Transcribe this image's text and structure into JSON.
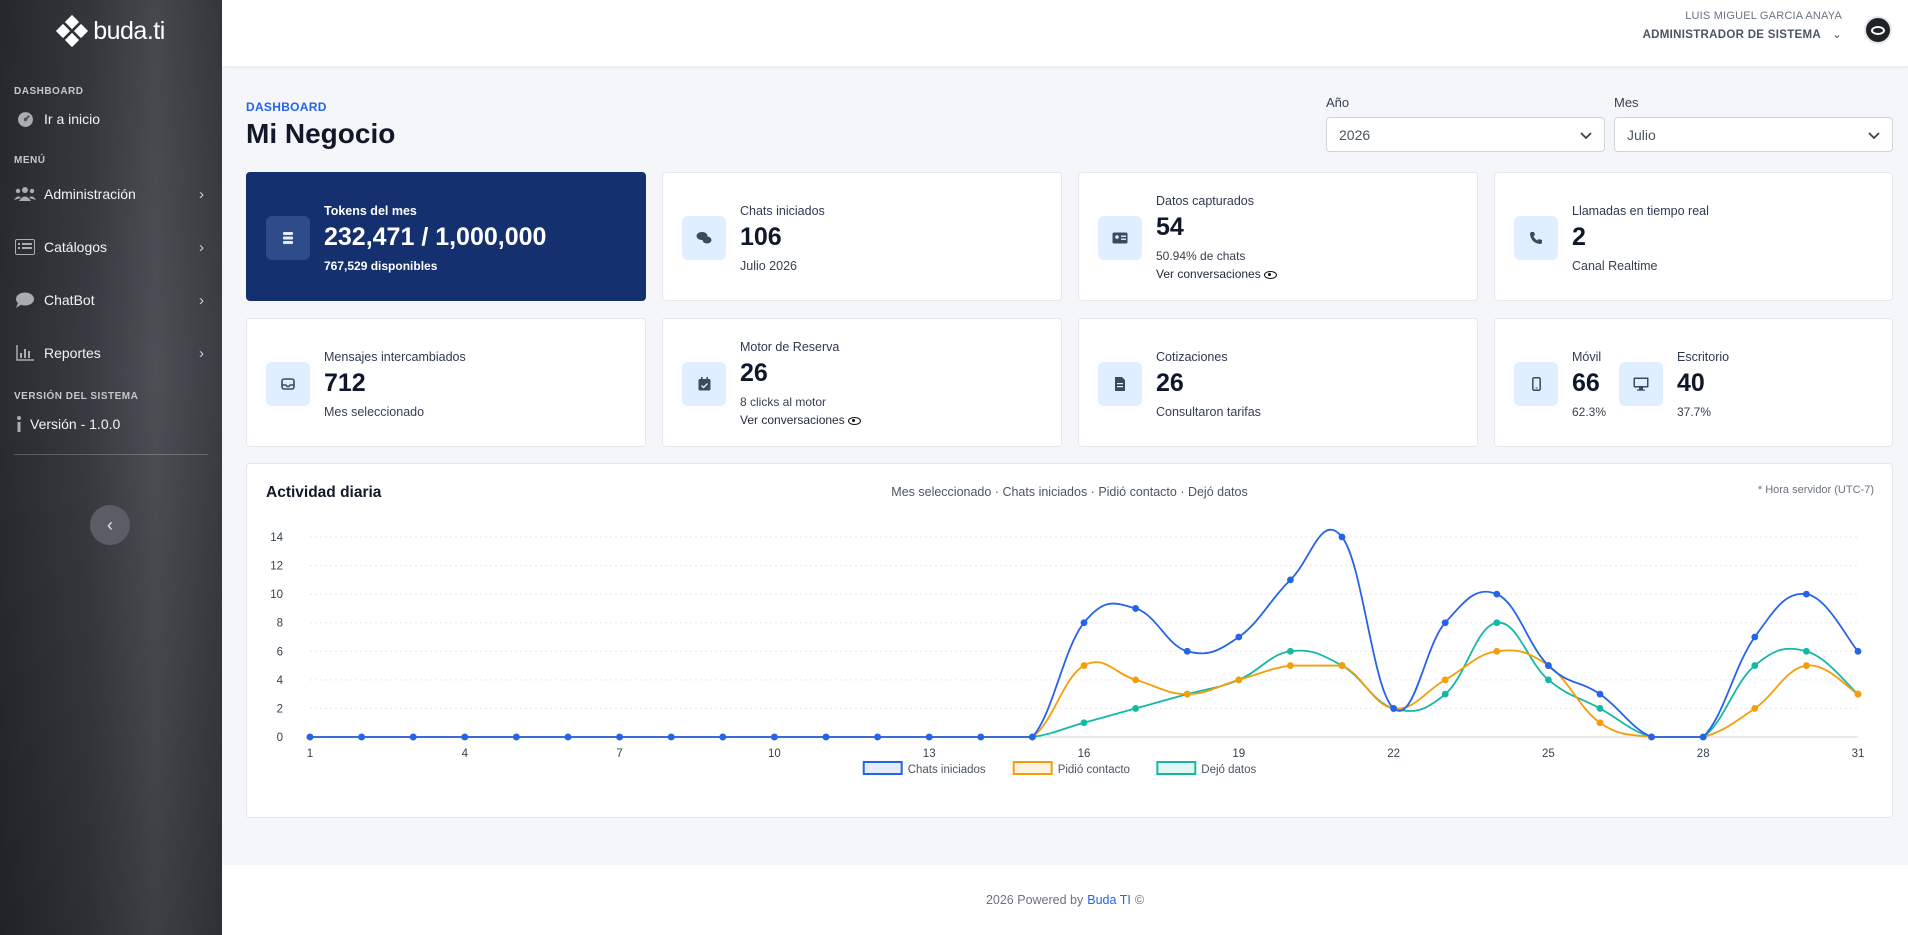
{
  "sidebar": {
    "logo_text": "buda.ti",
    "sections": {
      "dashboard": "DASHBOARD",
      "menu": "MENÚ",
      "version_section": "VERSIÓN DEL SISTEMA"
    },
    "home": {
      "label": "Ir a inicio",
      "icon": "dashboard-gauge-icon"
    },
    "items": [
      {
        "label": "Administración",
        "icon": "users-icon"
      },
      {
        "label": "Catálogos",
        "icon": "list-icon"
      },
      {
        "label": "ChatBot",
        "icon": "chat-bubble-icon"
      },
      {
        "label": "Reportes",
        "icon": "bar-chart-icon"
      }
    ],
    "version": {
      "label": "Versión - 1.0.0",
      "icon": "info-icon"
    }
  },
  "header": {
    "user_name": "LUIS MIGUEL GARCIA ANAYA",
    "user_role": "ADMINISTRADOR DE SISTEMA"
  },
  "page": {
    "breadcrumb": "DASHBOARD",
    "title": "Mi Negocio"
  },
  "filters": {
    "year_label": "Año",
    "year_value": "2026",
    "month_label": "Mes",
    "month_value": "Julio"
  },
  "cards": {
    "tokens": {
      "title": "Tokens del mes",
      "value": "232,471 / 1,000,000",
      "sub": "767,529 disponibles"
    },
    "chats": {
      "title": "Chats iniciados",
      "value": "106",
      "sub": "Julio 2026"
    },
    "datos": {
      "title": "Datos capturados",
      "value": "54",
      "sub": "50.94% de chats",
      "link": "Ver conversaciones"
    },
    "llamadas": {
      "title": "Llamadas en tiempo real",
      "value": "2",
      "sub": "Canal Realtime"
    },
    "mensajes": {
      "title": "Mensajes intercambiados",
      "value": "712",
      "sub": "Mes seleccionado"
    },
    "motor": {
      "title": "Motor de Reserva",
      "value": "26",
      "sub": "8 clicks al motor",
      "link": "Ver conversaciones"
    },
    "cotizaciones": {
      "title": "Cotizaciones",
      "value": "26",
      "sub": "Consultaron tarifas"
    },
    "movil": {
      "title": "Móvil",
      "value": "66",
      "sub": "62.3%"
    },
    "escritorio": {
      "title": "Escritorio",
      "value": "40",
      "sub": "37.7%"
    }
  },
  "chart_card": {
    "title": "Actividad diaria",
    "subtitle": "Mes seleccionado · Chats iniciados · Pidió contacto · Dejó datos",
    "note": "* Hora servidor (UTC-7)"
  },
  "chart_data": {
    "type": "line",
    "x": [
      1,
      2,
      3,
      4,
      5,
      6,
      7,
      8,
      9,
      10,
      11,
      12,
      13,
      14,
      15,
      16,
      17,
      18,
      19,
      20,
      21,
      22,
      23,
      24,
      25,
      26,
      27,
      28,
      29,
      30,
      31
    ],
    "x_tick_labels": [
      "1",
      "4",
      "7",
      "10",
      "13",
      "16",
      "19",
      "22",
      "25",
      "28",
      "31"
    ],
    "ylim": [
      0,
      14
    ],
    "y_ticks": [
      0,
      2,
      4,
      6,
      8,
      10,
      12,
      14
    ],
    "grid": true,
    "legend_position": "bottom",
    "series": [
      {
        "name": "Chats iniciados",
        "color": "#2563eb",
        "values": [
          0,
          0,
          0,
          0,
          0,
          0,
          0,
          0,
          0,
          0,
          0,
          0,
          0,
          0,
          0,
          8,
          9,
          6,
          7,
          11,
          14,
          2,
          8,
          10,
          5,
          3,
          0,
          0,
          7,
          10,
          6
        ]
      },
      {
        "name": "Pidió contacto",
        "color": "#f59e0b",
        "values": [
          0,
          0,
          0,
          0,
          0,
          0,
          0,
          0,
          0,
          0,
          0,
          0,
          0,
          0,
          0,
          5,
          4,
          3,
          4,
          5,
          5,
          2,
          4,
          6,
          5,
          1,
          0,
          0,
          2,
          5,
          3
        ]
      },
      {
        "name": "Dejó datos",
        "color": "#14b8a6",
        "values": [
          0,
          0,
          0,
          0,
          0,
          0,
          0,
          0,
          0,
          0,
          0,
          0,
          0,
          0,
          0,
          1,
          2,
          3,
          4,
          6,
          5,
          2,
          3,
          8,
          4,
          2,
          0,
          0,
          5,
          6,
          3
        ]
      }
    ]
  },
  "footer": {
    "prefix": "2026 Powered by",
    "brand": "Buda TI",
    "suffix": "©"
  }
}
